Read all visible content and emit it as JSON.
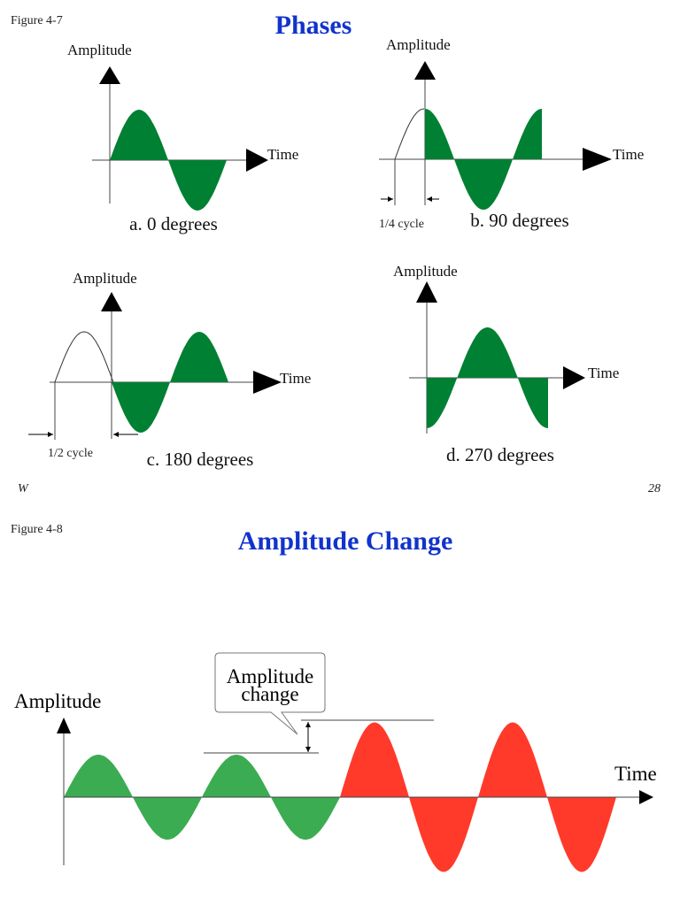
{
  "colors": {
    "title": "#1133cc",
    "wave_green": "#008033",
    "wave_light_green": "#3cac52",
    "wave_red": "#ff3a2a",
    "axis": "#444444"
  },
  "figure_4_7": {
    "figure_label": "Figure 4-7",
    "title": "Phases",
    "axis_y_label": "Amplitude",
    "axis_x_label": "Time",
    "panels": [
      {
        "caption": "a. 0 degrees",
        "phase_degrees": 0,
        "shift_label": ""
      },
      {
        "caption": "b. 90 degrees",
        "phase_degrees": 90,
        "shift_label": "1/4 cycle"
      },
      {
        "caption": "c. 180 degrees",
        "phase_degrees": 180,
        "shift_label": "1/2 cycle"
      },
      {
        "caption": "d. 270 degrees",
        "phase_degrees": 270,
        "shift_label": ""
      }
    ],
    "footer_left": "W",
    "footer_right": "28"
  },
  "figure_4_8": {
    "figure_label": "Figure 4-8",
    "title": "Amplitude Change",
    "axis_y_label": "Amplitude",
    "axis_x_label": "Time",
    "callout_line1": "Amplitude",
    "callout_line2": "change",
    "low_amplitude_cycles": 2,
    "high_amplitude_cycles": 2,
    "amplitude_ratio": 2
  }
}
